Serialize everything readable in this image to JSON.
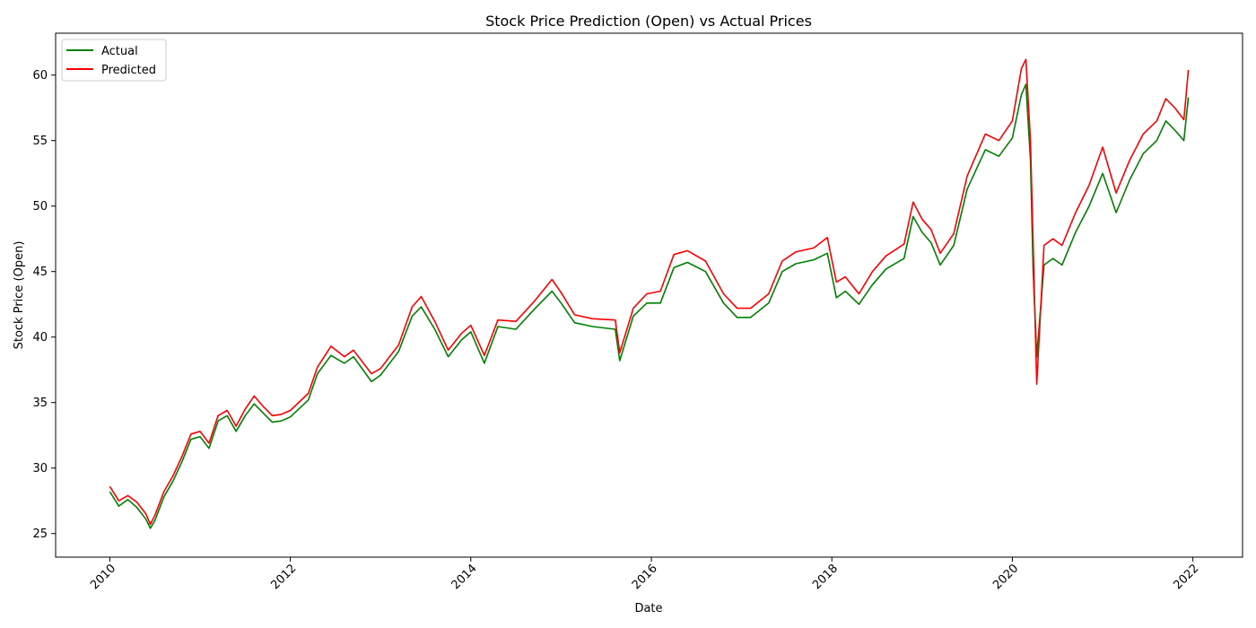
{
  "chart_data": {
    "type": "line",
    "title": "Stock Price Prediction (Open) vs Actual Prices",
    "xlabel": "Date",
    "ylabel": "Stock Price (Open)",
    "xlim": [
      2009.4,
      2022.55
    ],
    "ylim": [
      23.2,
      63.2
    ],
    "x_ticks": [
      2010,
      2012,
      2014,
      2016,
      2018,
      2020,
      2022
    ],
    "x_tick_labels": [
      "2010",
      "2012",
      "2014",
      "2016",
      "2018",
      "2020",
      "2022"
    ],
    "y_ticks": [
      25,
      30,
      35,
      40,
      45,
      50,
      55,
      60
    ],
    "y_tick_labels": [
      "25",
      "30",
      "35",
      "40",
      "45",
      "50",
      "55",
      "60"
    ],
    "grid": false,
    "legend": {
      "position": "top-left",
      "entries": [
        "Actual",
        "Predicted"
      ]
    },
    "colors": {
      "Actual": "#008000",
      "Predicted": "#ff0000"
    },
    "series": [
      {
        "name": "Actual",
        "x": [
          2010.0,
          2010.1,
          2010.2,
          2010.3,
          2010.4,
          2010.45,
          2010.5,
          2010.6,
          2010.7,
          2010.8,
          2010.9,
          2011.0,
          2011.1,
          2011.2,
          2011.3,
          2011.4,
          2011.5,
          2011.6,
          2011.7,
          2011.8,
          2011.9,
          2012.0,
          2012.2,
          2012.3,
          2012.45,
          2012.6,
          2012.7,
          2012.9,
          2013.0,
          2013.2,
          2013.35,
          2013.45,
          2013.6,
          2013.75,
          2013.9,
          2014.0,
          2014.15,
          2014.3,
          2014.5,
          2014.7,
          2014.9,
          2015.0,
          2015.15,
          2015.35,
          2015.6,
          2015.65,
          2015.8,
          2015.95,
          2016.1,
          2016.25,
          2016.4,
          2016.6,
          2016.8,
          2016.95,
          2017.1,
          2017.3,
          2017.45,
          2017.6,
          2017.8,
          2017.95,
          2018.05,
          2018.15,
          2018.3,
          2018.45,
          2018.6,
          2018.8,
          2018.9,
          2019.0,
          2019.1,
          2019.2,
          2019.35,
          2019.5,
          2019.7,
          2019.85,
          2020.0,
          2020.1,
          2020.15,
          2020.2,
          2020.23,
          2020.27,
          2020.35,
          2020.45,
          2020.55,
          2020.7,
          2020.85,
          2021.0,
          2021.15,
          2021.3,
          2021.45,
          2021.6,
          2021.7,
          2021.8,
          2021.9,
          2021.95
        ],
        "values": [
          28.2,
          27.1,
          27.6,
          27.0,
          26.1,
          25.4,
          26.0,
          27.8,
          29.0,
          30.5,
          32.2,
          32.4,
          31.5,
          33.6,
          34.0,
          32.8,
          34.0,
          34.9,
          34.2,
          33.5,
          33.6,
          33.9,
          35.2,
          37.2,
          38.6,
          38.0,
          38.5,
          36.6,
          37.1,
          38.9,
          41.6,
          42.3,
          40.6,
          38.5,
          39.8,
          40.4,
          38.0,
          40.8,
          40.6,
          42.1,
          43.5,
          42.6,
          41.1,
          40.8,
          40.6,
          38.2,
          41.6,
          42.6,
          42.6,
          45.3,
          45.7,
          45.0,
          42.6,
          41.5,
          41.5,
          42.6,
          45.0,
          45.6,
          45.9,
          46.4,
          43.0,
          43.5,
          42.5,
          44.0,
          45.2,
          46.0,
          49.2,
          48.0,
          47.2,
          45.5,
          47.0,
          51.3,
          54.3,
          53.8,
          55.2,
          58.5,
          59.3,
          53.5,
          45.0,
          38.5,
          45.5,
          46.0,
          45.5,
          48.0,
          50.0,
          52.5,
          49.5,
          52.0,
          54.0,
          55.0,
          56.5,
          55.8,
          55.0,
          58.3
        ]
      },
      {
        "name": "Predicted",
        "x": [
          2010.0,
          2010.1,
          2010.2,
          2010.3,
          2010.4,
          2010.45,
          2010.5,
          2010.6,
          2010.7,
          2010.8,
          2010.9,
          2011.0,
          2011.1,
          2011.2,
          2011.3,
          2011.4,
          2011.5,
          2011.6,
          2011.7,
          2011.8,
          2011.9,
          2012.0,
          2012.2,
          2012.3,
          2012.45,
          2012.6,
          2012.7,
          2012.9,
          2013.0,
          2013.2,
          2013.35,
          2013.45,
          2013.6,
          2013.75,
          2013.9,
          2014.0,
          2014.15,
          2014.3,
          2014.5,
          2014.7,
          2014.9,
          2015.0,
          2015.15,
          2015.35,
          2015.6,
          2015.65,
          2015.8,
          2015.95,
          2016.1,
          2016.25,
          2016.4,
          2016.6,
          2016.8,
          2016.95,
          2017.1,
          2017.3,
          2017.45,
          2017.6,
          2017.8,
          2017.95,
          2018.05,
          2018.15,
          2018.3,
          2018.45,
          2018.6,
          2018.8,
          2018.9,
          2019.0,
          2019.1,
          2019.2,
          2019.35,
          2019.5,
          2019.7,
          2019.85,
          2020.0,
          2020.1,
          2020.15,
          2020.2,
          2020.23,
          2020.27,
          2020.35,
          2020.45,
          2020.55,
          2020.7,
          2020.85,
          2021.0,
          2021.15,
          2021.3,
          2021.45,
          2021.6,
          2021.7,
          2021.8,
          2021.9,
          2021.95
        ],
        "values": [
          28.6,
          27.5,
          27.9,
          27.4,
          26.5,
          25.7,
          26.4,
          28.2,
          29.4,
          30.9,
          32.6,
          32.8,
          31.9,
          34.0,
          34.4,
          33.2,
          34.5,
          35.5,
          34.7,
          34.0,
          34.1,
          34.4,
          35.7,
          37.7,
          39.3,
          38.5,
          39.0,
          37.2,
          37.6,
          39.4,
          42.3,
          43.1,
          41.2,
          39.0,
          40.3,
          40.9,
          38.6,
          41.3,
          41.2,
          42.7,
          44.4,
          43.4,
          41.7,
          41.4,
          41.3,
          38.8,
          42.2,
          43.3,
          43.5,
          46.3,
          46.6,
          45.8,
          43.3,
          42.2,
          42.2,
          43.3,
          45.8,
          46.5,
          46.8,
          47.6,
          44.2,
          44.6,
          43.3,
          45.0,
          46.2,
          47.1,
          50.3,
          49.0,
          48.2,
          46.4,
          47.9,
          52.3,
          55.5,
          55.0,
          56.5,
          60.5,
          61.2,
          55.0,
          47.0,
          36.4,
          47.0,
          47.5,
          47.0,
          49.5,
          51.6,
          54.5,
          51.0,
          53.5,
          55.5,
          56.5,
          58.2,
          57.5,
          56.6,
          60.4
        ]
      }
    ]
  }
}
